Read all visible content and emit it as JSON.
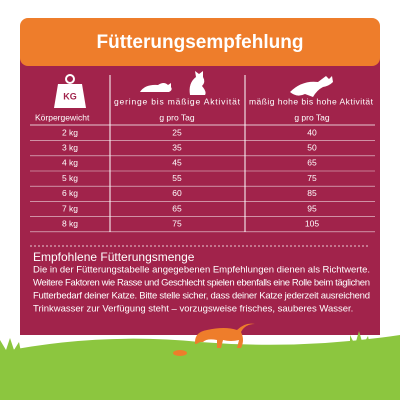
{
  "header": {
    "title": "Fütterungsempfehlung"
  },
  "table": {
    "icon_label": "KG",
    "columns": [
      "Körpergewicht",
      "geringe bis mäßige Aktivität",
      "mäßig hohe bis hohe Aktivität"
    ],
    "unit_labels": [
      "g pro Tag",
      "g pro Tag"
    ],
    "rows": [
      [
        "2 kg",
        "25",
        "40"
      ],
      [
        "3 kg",
        "35",
        "50"
      ],
      [
        "4 kg",
        "45",
        "65"
      ],
      [
        "5 kg",
        "55",
        "75"
      ],
      [
        "6 kg",
        "60",
        "85"
      ],
      [
        "7 kg",
        "65",
        "95"
      ],
      [
        "8 kg",
        "75",
        "105"
      ]
    ]
  },
  "info": {
    "title": "Empfohlene Fütterungsmenge",
    "lines": [
      "Die in der Fütterungstabelle angegebenen Empfehlungen dienen als Richtwerte.",
      "Weitere Faktoren wie Rasse und Geschlecht spielen ebenfalls eine Rolle beim täglichen",
      "Futterbedarf deiner Katze. Bitte stelle sicher, dass deiner Katze jederzeit ausreichend",
      "Trinkwasser zur Verfügung steht – vorzugsweise frisches, sauberes Wasser."
    ]
  }
}
